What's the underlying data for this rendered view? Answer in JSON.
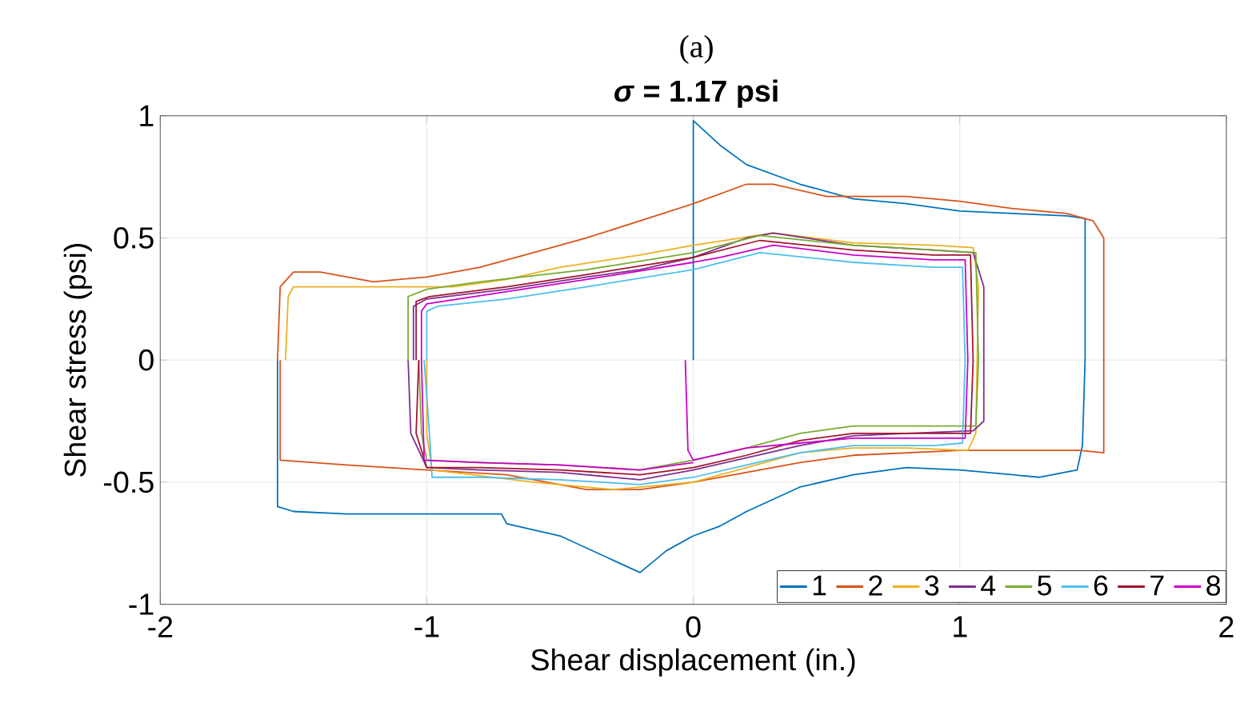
{
  "chart_data": {
    "type": "line",
    "title": "(a)",
    "subtitle": "*σ* = 1.17 psi",
    "xlabel": "Shear displacement (in.)",
    "ylabel": "Shear stress (psi)",
    "xlim": [
      -2,
      2
    ],
    "ylim": [
      -1,
      1
    ],
    "xticks": [
      -2,
      -1,
      0,
      1,
      2
    ],
    "yticks": [
      -1,
      -0.5,
      0,
      0.5,
      1
    ],
    "grid": true,
    "legend": "bottom right",
    "marker": "none",
    "line_style": "solid",
    "series": [
      {
        "name": "1",
        "color": "#0072bd",
        "x": [
          0,
          0,
          0.1,
          0.2,
          0.4,
          0.6,
          0.8,
          1.0,
          1.2,
          1.4,
          1.47,
          1.47,
          1.46,
          1.44,
          1.3,
          1.0,
          0.8,
          0.6,
          0.4,
          0.2,
          0.1,
          0.0,
          -0.1,
          -0.2,
          -0.3,
          -0.5,
          -0.7,
          -0.72,
          -1.0,
          -1.3,
          -1.5,
          -1.56,
          -1.56
        ],
        "values": [
          0,
          0.98,
          0.88,
          0.8,
          0.72,
          0.66,
          0.64,
          0.61,
          0.6,
          0.59,
          0.58,
          0,
          -0.35,
          -0.45,
          -0.48,
          -0.45,
          -0.44,
          -0.47,
          -0.52,
          -0.62,
          -0.68,
          -0.72,
          -0.78,
          -0.87,
          -0.82,
          -0.72,
          -0.67,
          -0.63,
          -0.63,
          -0.63,
          -0.62,
          -0.6,
          0
        ]
      },
      {
        "name": "2",
        "color": "#d95319",
        "x": [
          -1.56,
          -1.55,
          -1.5,
          -1.4,
          -1.2,
          -1.0,
          -0.8,
          -0.6,
          -0.4,
          -0.2,
          0,
          0.2,
          0.3,
          0.5,
          0.8,
          1.0,
          1.2,
          1.4,
          1.5,
          1.54,
          1.54,
          1.45,
          1.0,
          0.6,
          0.4,
          0.2,
          0,
          -0.2,
          -0.4,
          -0.7,
          -1.0,
          -1.3,
          -1.55,
          -1.55
        ],
        "values": [
          0,
          0.3,
          0.36,
          0.36,
          0.32,
          0.34,
          0.38,
          0.44,
          0.5,
          0.57,
          0.64,
          0.72,
          0.72,
          0.67,
          0.67,
          0.65,
          0.62,
          0.6,
          0.57,
          0.5,
          -0.38,
          -0.37,
          -0.37,
          -0.39,
          -0.42,
          -0.46,
          -0.5,
          -0.53,
          -0.53,
          -0.47,
          -0.45,
          -0.43,
          -0.41,
          0
        ]
      },
      {
        "name": "3",
        "color": "#edb120",
        "x": [
          -1.53,
          -1.52,
          -1.5,
          -1.2,
          -0.9,
          -0.7,
          -0.5,
          -0.2,
          0,
          0.3,
          0.6,
          0.9,
          1.05,
          1.07,
          1.06,
          1.03,
          0.8,
          0.6,
          0.4,
          0.2,
          0,
          -0.3,
          -0.6,
          -0.98,
          -1.0,
          -1.0
        ],
        "values": [
          0,
          0.26,
          0.3,
          0.3,
          0.3,
          0.33,
          0.38,
          0.43,
          0.47,
          0.52,
          0.48,
          0.47,
          0.46,
          0.3,
          -0.3,
          -0.37,
          -0.36,
          -0.36,
          -0.38,
          -0.44,
          -0.5,
          -0.53,
          -0.5,
          -0.45,
          -0.3,
          0
        ]
      },
      {
        "name": "4",
        "color": "#7e2f8e",
        "x": [
          -1.05,
          -1.05,
          -1.0,
          -0.7,
          -0.4,
          -0.2,
          0,
          0.2,
          0.3,
          0.6,
          0.9,
          1.05,
          1.09,
          1.09,
          1.05,
          0.8,
          0.6,
          0.4,
          0.2,
          0,
          -0.2,
          -0.5,
          -0.8,
          -1.0,
          -1.06,
          -1.07
        ],
        "values": [
          0,
          0.22,
          0.25,
          0.29,
          0.34,
          0.37,
          0.42,
          0.5,
          0.52,
          0.47,
          0.45,
          0.44,
          0.3,
          -0.25,
          -0.29,
          -0.3,
          -0.31,
          -0.35,
          -0.4,
          -0.45,
          -0.49,
          -0.46,
          -0.45,
          -0.44,
          -0.3,
          0
        ]
      },
      {
        "name": "5",
        "color": "#77ac30",
        "x": [
          -1.07,
          -1.07,
          -1.0,
          -0.8,
          -0.4,
          0,
          0.25,
          0.6,
          0.9,
          1.06,
          1.07,
          1.06,
          0.6,
          0.4,
          0.2,
          0,
          -0.2,
          -0.5,
          -0.8,
          -1.0,
          -1.02,
          -1.03
        ],
        "values": [
          0,
          0.26,
          0.29,
          0.32,
          0.37,
          0.44,
          0.51,
          0.47,
          0.45,
          0.44,
          0,
          -0.27,
          -0.27,
          -0.3,
          -0.36,
          -0.41,
          -0.45,
          -0.43,
          -0.42,
          -0.41,
          -0.3,
          0
        ]
      },
      {
        "name": "6",
        "color": "#4dbeee",
        "x": [
          -1.0,
          -1.0,
          -0.96,
          -0.7,
          -0.4,
          0,
          0.25,
          0.6,
          0.9,
          1.01,
          1.02,
          1.01,
          0.9,
          0.6,
          0.4,
          0.2,
          0,
          -0.2,
          -0.5,
          -0.8,
          -0.98,
          -0.99,
          -1.01
        ],
        "values": [
          0,
          0.2,
          0.22,
          0.25,
          0.3,
          0.37,
          0.44,
          0.4,
          0.38,
          0.38,
          0,
          -0.34,
          -0.35,
          -0.35,
          -0.38,
          -0.43,
          -0.48,
          -0.51,
          -0.49,
          -0.48,
          -0.48,
          -0.3,
          0
        ]
      },
      {
        "name": "7",
        "color": "#a2142f",
        "x": [
          -1.04,
          -1.04,
          -0.99,
          -0.7,
          -0.4,
          0,
          0.25,
          0.6,
          0.9,
          1.04,
          1.05,
          1.04,
          0.6,
          0.4,
          0.2,
          0,
          -0.2,
          -0.5,
          -0.8,
          -1.0,
          -1.04,
          -1.03
        ],
        "values": [
          0,
          0.24,
          0.26,
          0.3,
          0.35,
          0.42,
          0.49,
          0.45,
          0.43,
          0.43,
          0,
          -0.3,
          -0.3,
          -0.33,
          -0.39,
          -0.44,
          -0.47,
          -0.45,
          -0.44,
          -0.44,
          -0.3,
          0
        ]
      },
      {
        "name": "8",
        "color": "#cc00cc",
        "x": [
          -0.03,
          -0.02,
          0,
          0.2,
          0.4,
          0.6,
          1.02,
          1.03,
          1.02,
          0.9,
          0.6,
          0.3,
          0.1,
          0,
          -0.4,
          -0.7,
          -1.0,
          -1.02,
          -1.02,
          -1.01,
          -0.8,
          -0.5,
          -0.2,
          0
        ],
        "values": [
          0,
          -0.37,
          -0.41,
          -0.36,
          -0.34,
          -0.32,
          -0.32,
          0,
          0.41,
          0.41,
          0.43,
          0.47,
          0.42,
          0.4,
          0.33,
          0.28,
          0.23,
          0.2,
          0,
          -0.41,
          -0.42,
          -0.43,
          -0.45,
          -0.42
        ]
      }
    ]
  }
}
